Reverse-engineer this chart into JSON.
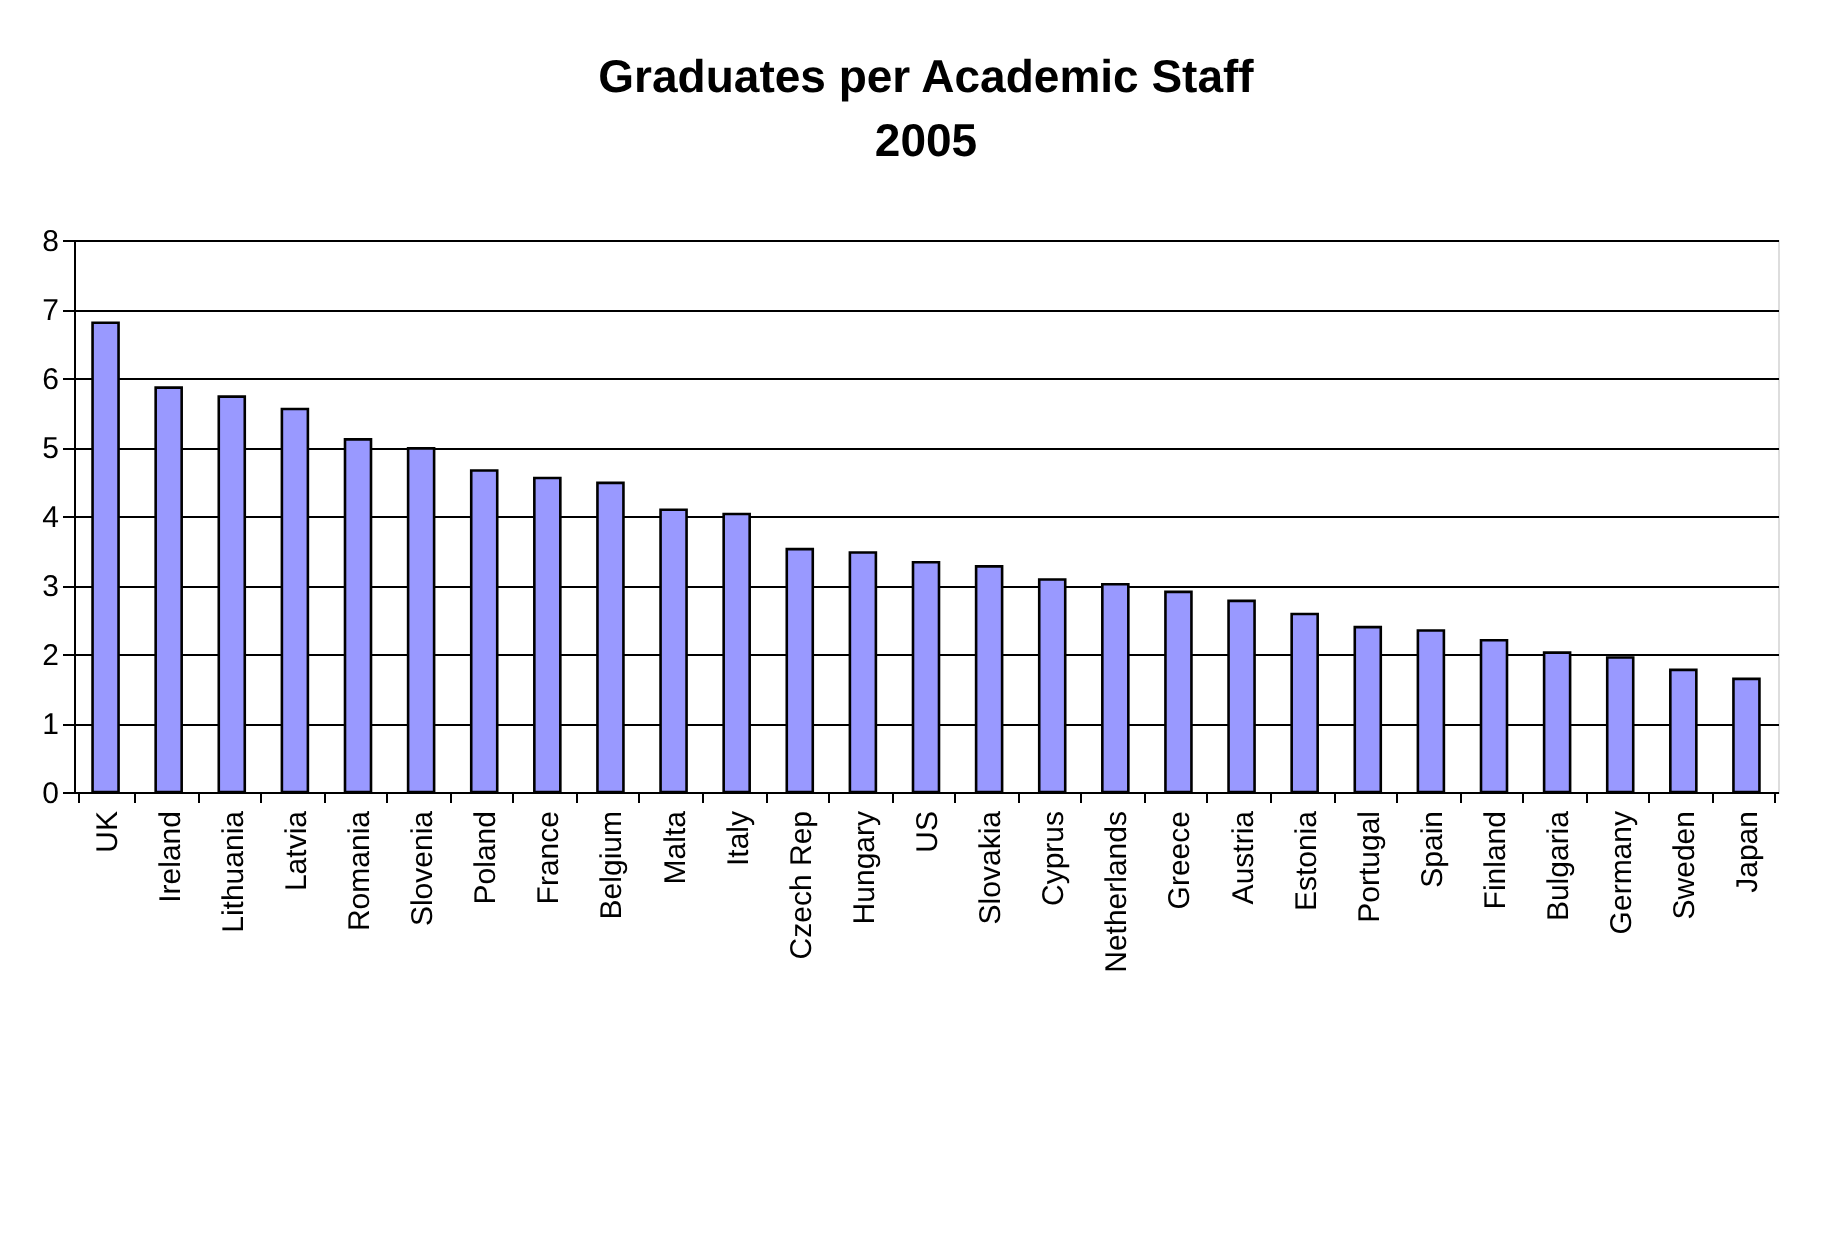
{
  "chart_data": {
    "type": "bar",
    "title": "Graduates per Academic Staff\n2005",
    "categories": [
      "UK",
      "Ireland",
      "Lithuania",
      "Latvia",
      "Romania",
      "Slovenia",
      "Poland",
      "France",
      "Belgium",
      "Malta",
      "Italy",
      "Czech Rep",
      "Hungary",
      "US",
      "Slovakia",
      "Cyprus",
      "Netherlands",
      "Greece",
      "Austria",
      "Estonia",
      "Portugal",
      "Spain",
      "Finland",
      "Bulgaria",
      "Germany",
      "Sweden",
      "Japan"
    ],
    "values": [
      6.8,
      5.86,
      5.73,
      5.55,
      5.11,
      4.98,
      4.66,
      4.55,
      4.48,
      4.09,
      4.03,
      3.52,
      3.47,
      3.33,
      3.27,
      3.08,
      3.01,
      2.9,
      2.77,
      2.58,
      2.39,
      2.34,
      2.2,
      2.02,
      1.95,
      1.77,
      1.64
    ],
    "color": "#9999ff",
    "ylim": [
      0,
      8
    ],
    "yticks": [
      0,
      1,
      2,
      3,
      4,
      5,
      6,
      7,
      8
    ],
    "grid": "y"
  }
}
